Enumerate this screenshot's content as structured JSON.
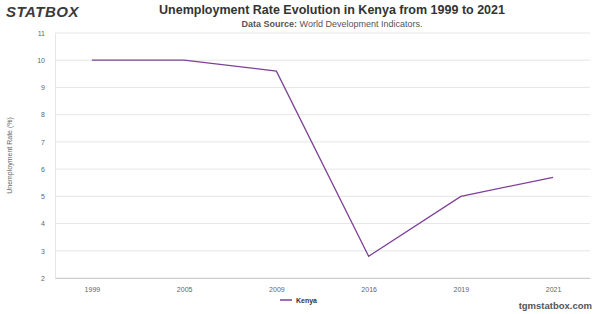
{
  "chart_data": {
    "type": "line",
    "title": "Unemployment Rate Evolution in Kenya from 1999 to 2021",
    "subtitle": "Data Source: World Development Indicators.",
    "ylabel": "Unemployment Rate (%)",
    "categories": [
      "1999",
      "2005",
      "2009",
      "2016",
      "2019",
      "2021"
    ],
    "series": [
      {
        "name": "Kenya",
        "color": "#7e3f98",
        "values": [
          10,
          10,
          9.6,
          2.8,
          5.0,
          5.7
        ]
      }
    ],
    "ylim": [
      2,
      11
    ],
    "yticks": [
      2,
      3,
      4,
      5,
      6,
      7,
      8,
      9,
      10,
      11
    ],
    "grid": true,
    "legend": "bottom"
  },
  "branding": {
    "logo": "STATBOX",
    "footer": "tgmstatbox.com"
  }
}
